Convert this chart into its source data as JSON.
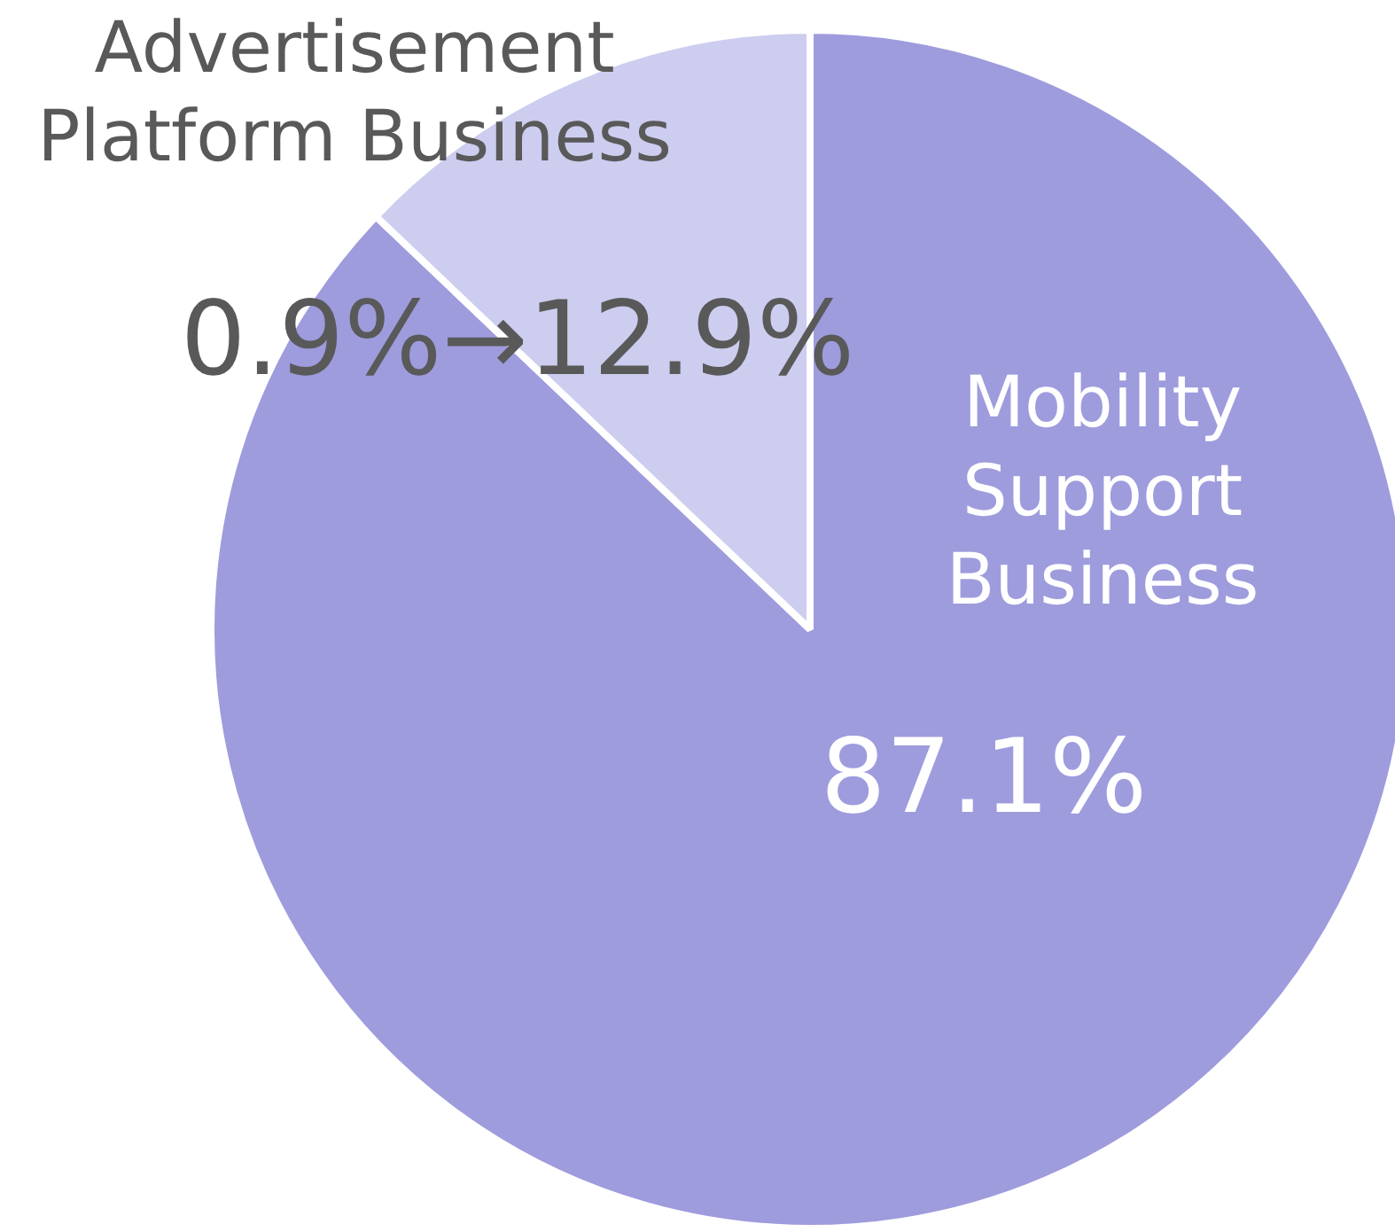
{
  "chart_data": {
    "type": "pie",
    "categories": [
      "Mobility Support Business",
      "Advertisement Platform Business"
    ],
    "values": [
      87.1,
      12.9
    ],
    "colors": [
      "#9e9cdd",
      "#cccdef"
    ],
    "value_labels": [
      "87.1%",
      "0.9%→12.9%"
    ],
    "legend": false
  }
}
